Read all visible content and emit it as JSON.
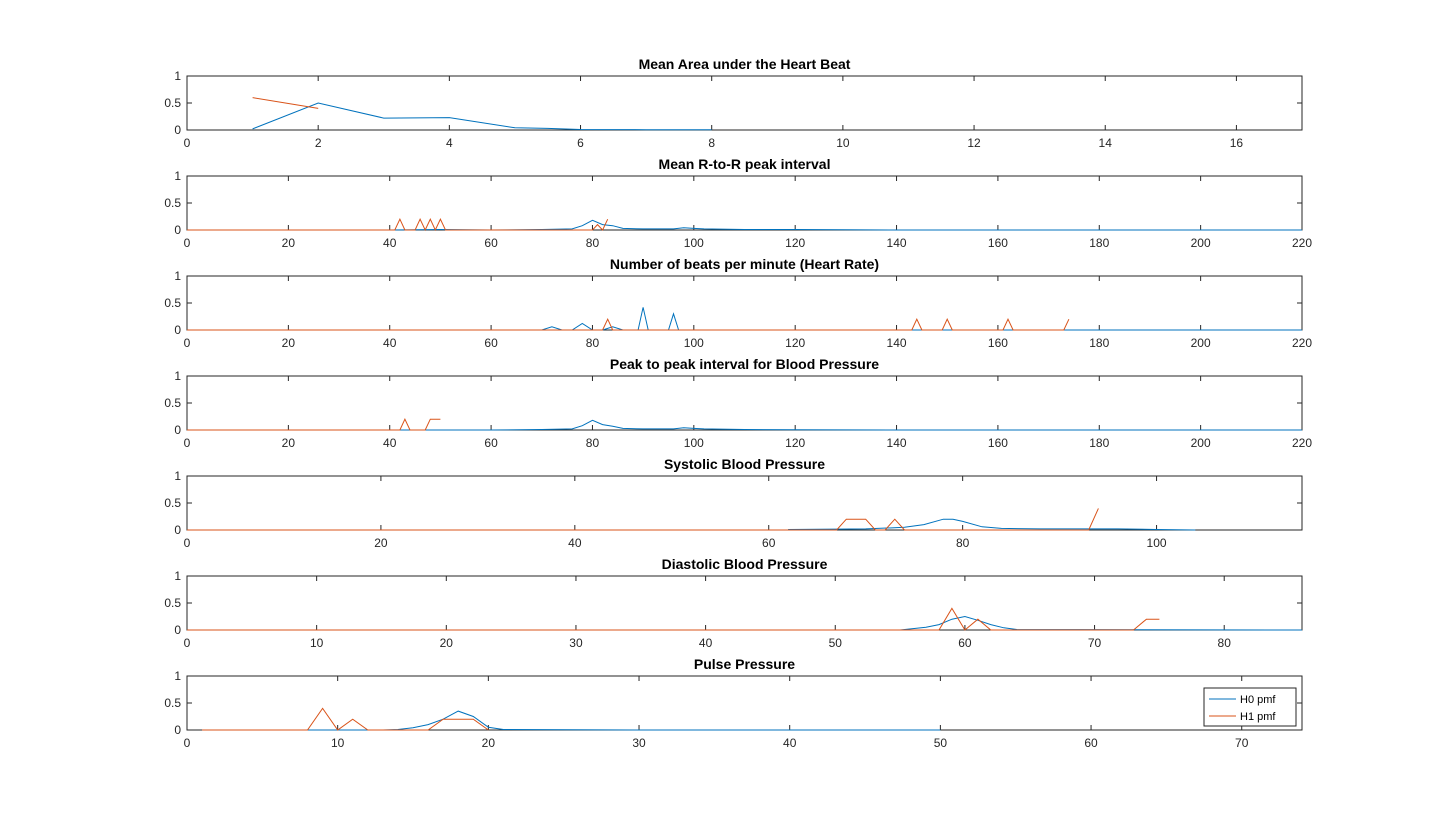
{
  "colors": {
    "h0": "#0072BD",
    "h1": "#D95319",
    "axis": "#262626"
  },
  "legend": {
    "placement": "bottom-right",
    "in_panel": 6,
    "entries": [
      "H0 pmf",
      "H1 pmf"
    ]
  },
  "chart_data": [
    {
      "type": "line",
      "title": "Mean Area under the Heart Beat",
      "xlim": [
        0,
        17
      ],
      "ylim": [
        0,
        1
      ],
      "xticks": [
        0,
        2,
        4,
        6,
        8,
        10,
        12,
        14,
        16
      ],
      "yticks": [
        0,
        0.5,
        1
      ],
      "xtick_labels": [
        "0",
        "2",
        "4",
        "6",
        "8",
        "10",
        "12",
        "14",
        "16"
      ],
      "ytick_labels": [
        "0",
        "0.5",
        "1"
      ],
      "series": [
        {
          "key": "h0",
          "x": [
            1,
            2,
            3,
            4,
            5,
            5.5,
            6,
            7,
            8
          ],
          "y": [
            0.02,
            0.5,
            0.22,
            0.23,
            0.04,
            0.03,
            0.01,
            0.005,
            0.003
          ]
        },
        {
          "key": "h1",
          "x": [
            1,
            2
          ],
          "y": [
            0.6,
            0.4
          ]
        }
      ]
    },
    {
      "type": "line",
      "title": "Mean R-to-R peak interval",
      "xlim": [
        0,
        220
      ],
      "ylim": [
        0,
        1
      ],
      "xticks": [
        0,
        20,
        40,
        60,
        80,
        100,
        120,
        140,
        160,
        180,
        200,
        220
      ],
      "yticks": [
        0,
        0.5,
        1
      ],
      "xtick_labels": [
        "0",
        "20",
        "40",
        "60",
        "80",
        "100",
        "120",
        "140",
        "160",
        "180",
        "200",
        "220"
      ],
      "ytick_labels": [
        "0",
        "0.5",
        "1"
      ],
      "series": [
        {
          "key": "h0",
          "x": [
            0,
            40,
            50,
            60,
            70,
            76,
            78,
            80,
            82,
            84,
            86,
            90,
            96,
            98,
            100,
            102,
            110,
            120,
            130,
            140,
            160,
            180,
            200,
            220
          ],
          "y": [
            0,
            0,
            0.01,
            0,
            0.01,
            0.02,
            0.08,
            0.18,
            0.1,
            0.08,
            0.03,
            0.02,
            0.02,
            0.04,
            0.03,
            0.02,
            0.01,
            0.01,
            0.005,
            0,
            0,
            0,
            0,
            0
          ]
        },
        {
          "key": "h1",
          "x": [
            0,
            40,
            41,
            42,
            43,
            45,
            46,
            47,
            48,
            49,
            50,
            51,
            52,
            80,
            81,
            82,
            83
          ],
          "y": [
            0,
            0,
            0,
            0.2,
            0,
            0,
            0.2,
            0,
            0.2,
            0,
            0.2,
            0,
            0,
            0,
            0.1,
            0,
            0.2
          ]
        }
      ]
    },
    {
      "type": "line",
      "title": "Number of beats per minute (Heart Rate)",
      "xlim": [
        0,
        220
      ],
      "ylim": [
        0,
        1
      ],
      "xticks": [
        0,
        20,
        40,
        60,
        80,
        100,
        120,
        140,
        160,
        180,
        200,
        220
      ],
      "yticks": [
        0,
        0.5,
        1
      ],
      "xtick_labels": [
        "0",
        "20",
        "40",
        "60",
        "80",
        "100",
        "120",
        "140",
        "160",
        "180",
        "200",
        "220"
      ],
      "ytick_labels": [
        "0",
        "0.5",
        "1"
      ],
      "series": [
        {
          "key": "h0",
          "x": [
            0,
            70,
            72,
            74,
            76,
            78,
            80,
            82,
            84,
            86,
            88,
            89,
            90,
            91,
            92,
            94,
            95,
            96,
            97,
            98,
            100,
            220
          ],
          "y": [
            0,
            0,
            0.06,
            0,
            0,
            0.12,
            0,
            0,
            0.06,
            0,
            0,
            0,
            0.42,
            0,
            0,
            0,
            0,
            0.3,
            0,
            0,
            0,
            0
          ]
        },
        {
          "key": "h1",
          "x": [
            0,
            82,
            83,
            84,
            142,
            143,
            144,
            145,
            148,
            149,
            150,
            151,
            160,
            161,
            162,
            163,
            172,
            173,
            174
          ],
          "y": [
            0,
            0,
            0.2,
            0,
            0,
            0,
            0.2,
            0,
            0,
            0,
            0.2,
            0,
            0,
            0,
            0.2,
            0,
            0,
            0,
            0.2
          ]
        }
      ]
    },
    {
      "type": "line",
      "title": "Peak to peak interval for Blood Pressure",
      "xlim": [
        0,
        220
      ],
      "ylim": [
        0,
        1
      ],
      "xticks": [
        0,
        20,
        40,
        60,
        80,
        100,
        120,
        140,
        160,
        180,
        200,
        220
      ],
      "yticks": [
        0,
        0.5,
        1
      ],
      "xtick_labels": [
        "0",
        "20",
        "40",
        "60",
        "80",
        "100",
        "120",
        "140",
        "160",
        "180",
        "200",
        "220"
      ],
      "ytick_labels": [
        "0",
        "0.5",
        "1"
      ],
      "series": [
        {
          "key": "h0",
          "x": [
            0,
            40,
            60,
            70,
            76,
            78,
            80,
            82,
            84,
            86,
            90,
            96,
            98,
            100,
            102,
            110,
            120,
            140,
            160,
            180,
            200,
            220
          ],
          "y": [
            0,
            0,
            0,
            0.01,
            0.02,
            0.08,
            0.18,
            0.1,
            0.07,
            0.03,
            0.02,
            0.02,
            0.04,
            0.03,
            0.02,
            0.01,
            0.005,
            0,
            0,
            0,
            0,
            0
          ]
        },
        {
          "key": "h1",
          "x": [
            0,
            42,
            43,
            44,
            47,
            48,
            50
          ],
          "y": [
            0,
            0,
            0.2,
            0,
            0,
            0.2,
            0.2
          ]
        }
      ]
    },
    {
      "type": "line",
      "title": "Systolic Blood Pressure",
      "xlim": [
        0,
        115
      ],
      "ylim": [
        0,
        1
      ],
      "xticks": [
        0,
        20,
        40,
        60,
        80,
        100
      ],
      "yticks": [
        0,
        0.5,
        1
      ],
      "xtick_labels": [
        "0",
        "20",
        "40",
        "60",
        "80",
        "100"
      ],
      "ytick_labels": [
        "0",
        "0.5",
        "1"
      ],
      "series": [
        {
          "key": "h0",
          "x": [
            62,
            70,
            74,
            76,
            78,
            79,
            80,
            82,
            84,
            88,
            92,
            96,
            100,
            104
          ],
          "y": [
            0.01,
            0.02,
            0.05,
            0.1,
            0.2,
            0.2,
            0.16,
            0.06,
            0.03,
            0.02,
            0.02,
            0.02,
            0.01,
            0
          ]
        },
        {
          "key": "h1",
          "x": [
            0,
            67,
            68,
            69,
            70,
            71,
            72,
            73,
            74,
            75,
            93,
            94
          ],
          "y": [
            0,
            0,
            0.2,
            0.2,
            0.2,
            0,
            0,
            0.2,
            0,
            0,
            0,
            0.4
          ]
        }
      ]
    },
    {
      "type": "line",
      "title": "Diastolic Blood Pressure",
      "xlim": [
        0,
        86
      ],
      "ylim": [
        0,
        1
      ],
      "xticks": [
        0,
        10,
        20,
        30,
        40,
        50,
        60,
        70,
        80
      ],
      "yticks": [
        0,
        0.5,
        1
      ],
      "xtick_labels": [
        "0",
        "10",
        "20",
        "30",
        "40",
        "50",
        "60",
        "70",
        "80"
      ],
      "ytick_labels": [
        "0",
        "0.5",
        "1"
      ],
      "series": [
        {
          "key": "h0",
          "x": [
            0,
            55,
            57,
            58,
            59,
            60,
            61,
            62,
            63,
            64,
            86
          ],
          "y": [
            0,
            0,
            0.05,
            0.1,
            0.2,
            0.25,
            0.18,
            0.1,
            0.04,
            0.01,
            0
          ]
        },
        {
          "key": "h1",
          "x": [
            0,
            58,
            59,
            60,
            61,
            62,
            73,
            74,
            75
          ],
          "y": [
            0,
            0,
            0.4,
            0,
            0.2,
            0,
            0,
            0.2,
            0.2
          ]
        }
      ]
    },
    {
      "type": "line",
      "title": "Pulse Pressure",
      "xlim": [
        0,
        74
      ],
      "ylim": [
        0,
        1
      ],
      "xticks": [
        0,
        10,
        20,
        30,
        40,
        50,
        60,
        70
      ],
      "yticks": [
        0,
        0.5,
        1
      ],
      "xtick_labels": [
        "0",
        "10",
        "20",
        "30",
        "40",
        "50",
        "60",
        "70"
      ],
      "ytick_labels": [
        "0",
        "0.5",
        "1"
      ],
      "series": [
        {
          "key": "h0",
          "x": [
            1,
            13,
            14,
            15,
            16,
            17,
            18,
            19,
            20,
            21,
            30,
            40,
            50
          ],
          "y": [
            0,
            0,
            0.01,
            0.04,
            0.1,
            0.2,
            0.35,
            0.25,
            0.05,
            0.01,
            0,
            0,
            0
          ]
        },
        {
          "key": "h1",
          "x": [
            1,
            8,
            9,
            10,
            11,
            12,
            16,
            17,
            18,
            19,
            20
          ],
          "y": [
            0,
            0,
            0.4,
            0,
            0.2,
            0,
            0,
            0.2,
            0.2,
            0.2,
            0
          ]
        }
      ]
    }
  ]
}
